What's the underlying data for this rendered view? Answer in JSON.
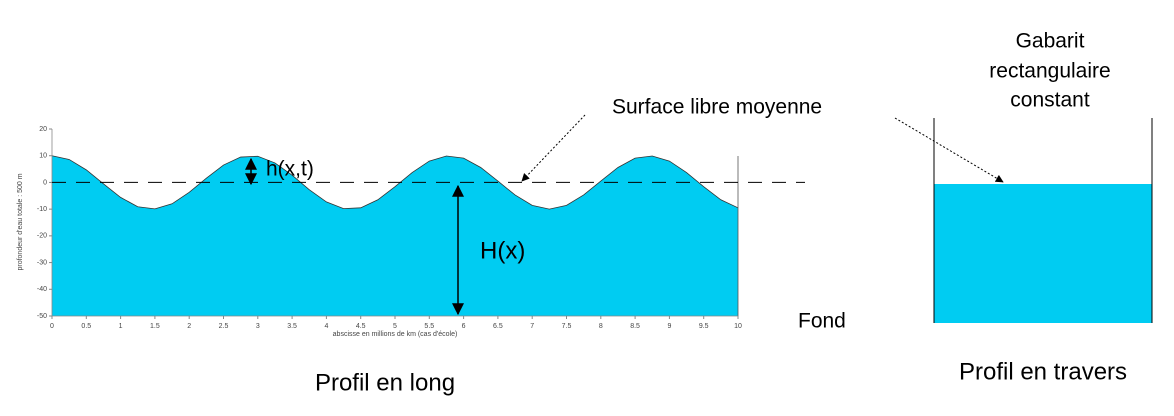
{
  "chart_data": {
    "type": "area",
    "x": [
      0,
      0.25,
      0.5,
      0.75,
      1,
      1.25,
      1.5,
      1.75,
      2,
      2.25,
      2.5,
      2.75,
      3,
      3.25,
      3.5,
      3.75,
      4,
      4.25,
      4.5,
      4.75,
      5,
      5.25,
      5.5,
      5.75,
      6,
      6.25,
      6.5,
      6.75,
      7,
      7.25,
      7.5,
      7.75,
      8,
      8.25,
      8.5,
      8.75,
      9,
      9.25,
      9.5,
      9.75,
      10
    ],
    "values": [
      10,
      8.6,
      4.7,
      -0.5,
      -5.6,
      -9.1,
      -9.9,
      -8.0,
      -3.7,
      1.6,
      6.5,
      9.5,
      9.8,
      7.3,
      2.7,
      -2.7,
      -7.3,
      -9.8,
      -9.5,
      -6.5,
      -1.6,
      3.7,
      8.0,
      9.9,
      9.1,
      5.6,
      0.5,
      -4.7,
      -8.6,
      -10,
      -8.6,
      -4.7,
      0.5,
      5.6,
      9.1,
      9.9,
      8.0,
      3.7,
      -1.6,
      -6.5,
      -9.5
    ],
    "color": "#00ccf2",
    "xlim": [
      0,
      10
    ],
    "xticks": [
      0,
      0.5,
      1,
      1.5,
      2,
      2.5,
      3,
      3.5,
      4,
      4.5,
      5,
      5.5,
      6,
      6.5,
      7,
      7.5,
      8,
      8.5,
      9,
      9.5,
      10
    ],
    "ylim": [
      -50,
      20
    ],
    "yticks": [
      -50,
      -40,
      -30,
      -20,
      -10,
      0,
      10,
      20
    ],
    "x_label": "abscisse en millions de km (cas d'école)",
    "y_label": "profondeur d'eau totale : 500 m",
    "annotations": {
      "h": "h(x,t)",
      "H": "H(x)",
      "surface": "Surface libre moyenne",
      "fond": "Fond",
      "long": "Profil en long",
      "travers": "Profil en travers",
      "gabarit": [
        "Gabarit",
        "rectangulaire",
        "constant"
      ]
    }
  }
}
